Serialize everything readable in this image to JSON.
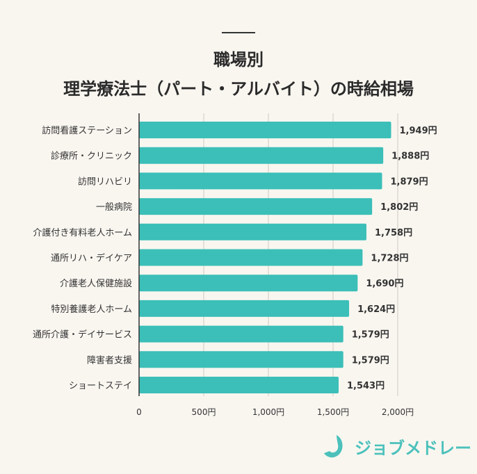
{
  "title_line1": "職場別",
  "title_line2": "理学療法士（パート・アルバイト）の時給相場",
  "chart_data": {
    "type": "bar",
    "orientation": "horizontal",
    "title": "職場別 理学療法士（パート・アルバイト）の時給相場",
    "categories": [
      "訪問看護ステーション",
      "診療所・クリニック",
      "訪問リハビリ",
      "一般病院",
      "介護付き有料老人ホーム",
      "通所リハ・デイケア",
      "介護老人保健施設",
      "特別養護老人ホーム",
      "通所介護・デイサービス",
      "障害者支援",
      "ショートステイ"
    ],
    "values": [
      1949,
      1888,
      1879,
      1802,
      1758,
      1728,
      1690,
      1624,
      1579,
      1579,
      1543
    ],
    "data_labels": [
      "1,949円",
      "1,888円",
      "1,879円",
      "1,802円",
      "1,758円",
      "1,728円",
      "1,690円",
      "1,624円",
      "1,579円",
      "1,579円",
      "1,543円"
    ],
    "xlim": [
      0,
      2000
    ],
    "x_ticks": [
      0,
      500,
      1000,
      1500,
      2000
    ],
    "x_tick_labels": [
      "0",
      "500円",
      "1,000円",
      "1,500円",
      "2,000円"
    ],
    "grid": true,
    "bar_color": "#3bbfb8"
  },
  "logo": {
    "text": "ジョブメドレー",
    "color": "#4cc1bb"
  }
}
